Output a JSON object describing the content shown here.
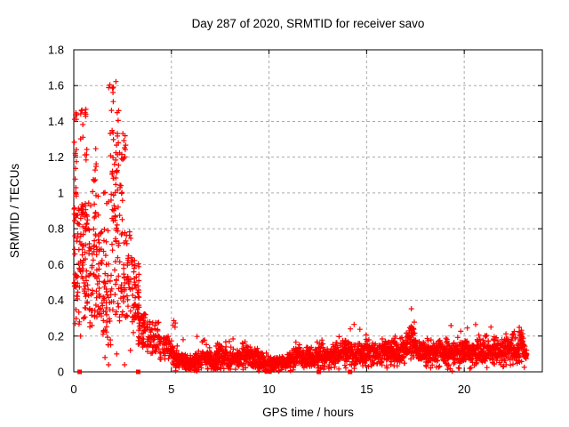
{
  "chart_data": {
    "type": "scatter",
    "title": "Day 287 of 2020, SRMTID for receiver savo",
    "xlabel": "GPS time / hours",
    "ylabel": "SRMTID / TECUs",
    "xlim": [
      0,
      24
    ],
    "ylim": [
      0,
      1.8
    ],
    "xticks": [
      0,
      5,
      10,
      15,
      20
    ],
    "xtick_labels": [
      "0",
      "5",
      "10",
      "15",
      "20"
    ],
    "yticks": [
      0,
      0.2,
      0.4,
      0.6,
      0.8,
      1,
      1.2,
      1.4,
      1.6,
      1.8
    ],
    "ytick_labels": [
      "0",
      "0.2",
      "0.4",
      "0.6",
      "0.8",
      "1",
      "1.2",
      "1.4",
      "1.6",
      "1.8"
    ],
    "grid": true,
    "legend": "none",
    "marker": "plus",
    "marker_color": "#ff0000",
    "grid_color": "#aaaaaa",
    "axis_color": "#000000",
    "background": "#ffffff",
    "seed": 1287,
    "zero_squares_x": [
      0.3,
      3.3,
      12.55,
      14.15
    ],
    "outliers": [
      [
        1.78,
        0.04
      ],
      [
        2.6,
        0.04
      ],
      [
        2.2,
        0.1
      ],
      [
        1.6,
        0.08
      ],
      [
        2.9,
        0.12
      ],
      [
        3.05,
        0.22
      ],
      [
        0.35,
        0.2
      ],
      [
        5.6,
        0.18
      ]
    ],
    "clusters": [
      [
        0.02,
        0.15,
        0.45,
        1.45,
        35
      ],
      [
        0.05,
        0.3,
        0.25,
        0.55,
        15
      ],
      [
        0.15,
        0.5,
        0.5,
        1.0,
        30
      ],
      [
        0.3,
        0.5,
        1.3,
        1.48,
        6
      ],
      [
        0.55,
        0.75,
        1.38,
        1.48,
        4
      ],
      [
        0.4,
        0.9,
        0.5,
        0.95,
        45
      ],
      [
        0.5,
        0.95,
        0.25,
        0.5,
        25
      ],
      [
        0.55,
        0.7,
        1.17,
        1.27,
        4
      ],
      [
        0.9,
        1.45,
        0.3,
        0.8,
        60
      ],
      [
        0.95,
        1.3,
        0.85,
        1.15,
        12
      ],
      [
        1.05,
        1.15,
        1.1,
        1.28,
        4
      ],
      [
        1.45,
        1.95,
        0.15,
        0.55,
        45
      ],
      [
        1.5,
        1.85,
        0.6,
        1.05,
        12
      ],
      [
        1.75,
        1.85,
        1.55,
        1.62,
        2
      ],
      [
        1.85,
        2.45,
        1.08,
        1.47,
        30
      ],
      [
        1.95,
        2.3,
        1.5,
        1.63,
        5
      ],
      [
        1.9,
        2.5,
        0.6,
        1.08,
        40
      ],
      [
        2.0,
        2.6,
        0.28,
        0.6,
        30
      ],
      [
        2.45,
        2.7,
        1.15,
        1.35,
        10
      ],
      [
        2.55,
        2.95,
        0.3,
        0.8,
        35
      ],
      [
        2.95,
        3.15,
        0.28,
        0.66,
        25
      ],
      [
        3.1,
        3.35,
        0.3,
        0.62,
        30
      ],
      [
        3.3,
        3.75,
        0.13,
        0.33,
        50
      ],
      [
        3.75,
        4.35,
        0.1,
        0.28,
        50
      ],
      [
        4.35,
        5.0,
        0.07,
        0.2,
        50
      ],
      [
        5.02,
        5.2,
        0.22,
        0.29,
        4
      ],
      [
        7.25,
        7.5,
        0.1,
        0.16,
        8
      ],
      [
        13.85,
        14.1,
        0.12,
        0.18,
        6
      ],
      [
        17.15,
        17.45,
        0.17,
        0.28,
        10
      ],
      [
        15.0,
        15.12,
        0.13,
        0.18,
        4
      ],
      [
        16.4,
        16.6,
        0.14,
        0.2,
        5
      ],
      [
        19.0,
        19.12,
        0.14,
        0.19,
        3
      ],
      [
        21.5,
        21.62,
        0.15,
        0.2,
        3
      ],
      [
        22.45,
        22.6,
        0.17,
        0.24,
        5
      ],
      [
        22.85,
        23.0,
        0.17,
        0.24,
        5
      ]
    ],
    "band": {
      "density_per_hour": 120,
      "control": [
        [
          5.0,
          0.09,
          0.035
        ],
        [
          5.5,
          0.065,
          0.03
        ],
        [
          5.9,
          0.045,
          0.025
        ],
        [
          6.3,
          0.06,
          0.03
        ],
        [
          6.7,
          0.08,
          0.035
        ],
        [
          7.2,
          0.06,
          0.03
        ],
        [
          7.5,
          0.08,
          0.04
        ],
        [
          8.0,
          0.065,
          0.035
        ],
        [
          8.5,
          0.075,
          0.035
        ],
        [
          8.8,
          0.09,
          0.04
        ],
        [
          9.3,
          0.075,
          0.035
        ],
        [
          9.8,
          0.05,
          0.03
        ],
        [
          10.2,
          0.04,
          0.025
        ],
        [
          10.6,
          0.055,
          0.03
        ],
        [
          11.0,
          0.07,
          0.03
        ],
        [
          11.4,
          0.085,
          0.035
        ],
        [
          11.8,
          0.07,
          0.03
        ],
        [
          12.2,
          0.08,
          0.035
        ],
        [
          12.6,
          0.085,
          0.04
        ],
        [
          13.0,
          0.1,
          0.04
        ],
        [
          13.4,
          0.085,
          0.04
        ],
        [
          13.9,
          0.11,
          0.045
        ],
        [
          14.3,
          0.095,
          0.04
        ],
        [
          14.7,
          0.1,
          0.045
        ],
        [
          15.0,
          0.115,
          0.045
        ],
        [
          15.4,
          0.1,
          0.04
        ],
        [
          15.8,
          0.105,
          0.045
        ],
        [
          16.2,
          0.11,
          0.045
        ],
        [
          16.6,
          0.105,
          0.045
        ],
        [
          17.0,
          0.12,
          0.05
        ],
        [
          17.3,
          0.16,
          0.06
        ],
        [
          17.6,
          0.12,
          0.045
        ],
        [
          18.0,
          0.11,
          0.045
        ],
        [
          18.4,
          0.1,
          0.04
        ],
        [
          18.8,
          0.11,
          0.045
        ],
        [
          19.2,
          0.105,
          0.045
        ],
        [
          19.6,
          0.1,
          0.04
        ],
        [
          20.0,
          0.11,
          0.045
        ],
        [
          20.4,
          0.1,
          0.045
        ],
        [
          20.8,
          0.115,
          0.045
        ],
        [
          21.2,
          0.105,
          0.04
        ],
        [
          21.6,
          0.12,
          0.045
        ],
        [
          22.0,
          0.12,
          0.045
        ],
        [
          22.4,
          0.14,
          0.05
        ],
        [
          22.65,
          0.1,
          0.05
        ],
        [
          22.85,
          0.15,
          0.06
        ],
        [
          23.05,
          0.12,
          0.05
        ],
        [
          23.2,
          0.08,
          0.03
        ]
      ]
    }
  }
}
